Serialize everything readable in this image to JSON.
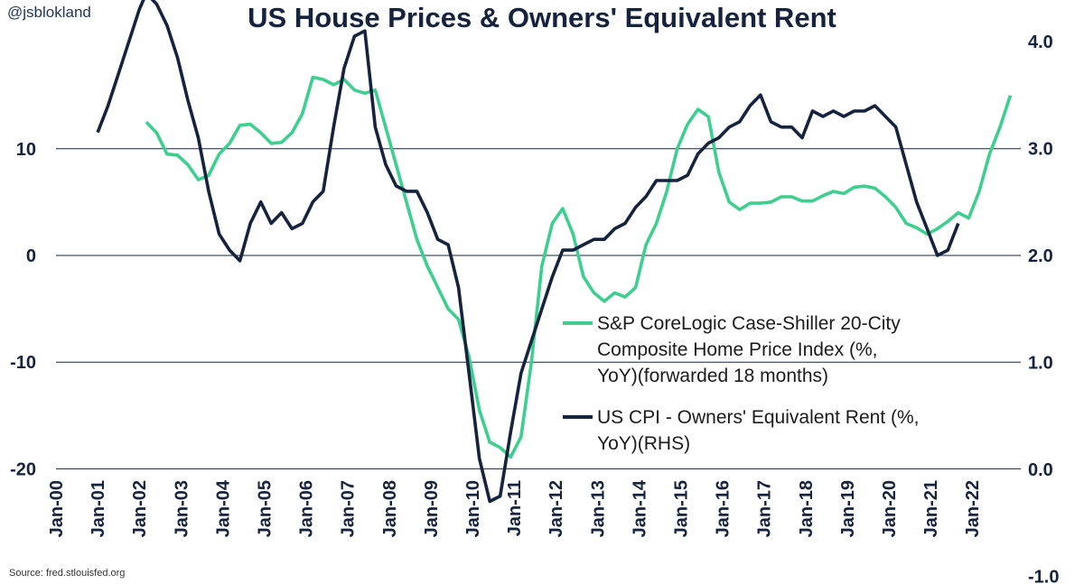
{
  "handle": "@jsblokland",
  "title": "US House Prices & Owners' Equivalent Rent",
  "source": "Source: fred.stlouisfed.org",
  "colors": {
    "green": "#3ccf8e",
    "navy": "#15233f",
    "grid": "#15233f"
  },
  "chart_data": {
    "type": "line",
    "title": "US House Prices & Owners' Equivalent Rent",
    "x_ticks": [
      "Jan-00",
      "Jan-01",
      "Jan-02",
      "Jan-03",
      "Jan-04",
      "Jan-05",
      "Jan-06",
      "Jan-07",
      "Jan-08",
      "Jan-09",
      "Jan-10",
      "Jan-11",
      "Jan-12",
      "Jan-13",
      "Jan-14",
      "Jan-15",
      "Jan-16",
      "Jan-17",
      "Jan-18",
      "Jan-19",
      "Jan-20",
      "Jan-21",
      "Jan-22"
    ],
    "left_axis": {
      "ticks": [
        10,
        0,
        -10,
        -20
      ],
      "tick_labels": [
        "10",
        "0",
        "-10",
        "-20"
      ],
      "range": [
        -20,
        17
      ]
    },
    "right_axis": {
      "ticks": [
        4.0,
        3.0,
        2.0,
        1.0,
        0.0,
        -1.0
      ],
      "tick_labels": [
        "4.0",
        "3.0",
        "2.0",
        "1.0",
        "0.0",
        "-1.0"
      ],
      "range": [
        -1.0,
        4.5
      ]
    },
    "gridlines": [
      10,
      0,
      -10,
      -20
    ],
    "legend_position": "center-right",
    "series": [
      {
        "name": "S&P CoreLogic Case-Shiller 20-City Composite Home Price Index (%, YoY)(forwarded 18 months)",
        "legend_lines": [
          "S&P CoreLogic Case-Shiller 20-City",
          "Composite Home Price Index (%,",
          "YoY)(forwarded 18 months)"
        ],
        "axis": "left",
        "color": "#3ccf8e",
        "points": [
          [
            "2002-03",
            12.5
          ],
          [
            "2002-06",
            11.5
          ],
          [
            "2002-09",
            9.5
          ],
          [
            "2002-12",
            9.4
          ],
          [
            "2003-03",
            8.5
          ],
          [
            "2003-06",
            7.1
          ],
          [
            "2003-09",
            7.5
          ],
          [
            "2003-12",
            9.5
          ],
          [
            "2004-03",
            10.5
          ],
          [
            "2004-06",
            12.2
          ],
          [
            "2004-09",
            12.3
          ],
          [
            "2004-12",
            11.5
          ],
          [
            "2005-03",
            10.5
          ],
          [
            "2005-06",
            10.6
          ],
          [
            "2005-09",
            11.5
          ],
          [
            "2005-12",
            13.3
          ],
          [
            "2006-03",
            16.7
          ],
          [
            "2006-06",
            16.5
          ],
          [
            "2006-09",
            16.0
          ],
          [
            "2006-12",
            16.5
          ],
          [
            "2007-03",
            15.5
          ],
          [
            "2007-06",
            15.2
          ],
          [
            "2007-09",
            15.5
          ],
          [
            "2007-12",
            12.0
          ],
          [
            "2008-03",
            8.5
          ],
          [
            "2008-06",
            5.0
          ],
          [
            "2008-09",
            1.5
          ],
          [
            "2008-12",
            -1.0
          ],
          [
            "2009-03",
            -3.0
          ],
          [
            "2009-06",
            -5.0
          ],
          [
            "2009-09",
            -6.0
          ],
          [
            "2009-12",
            -9.5
          ],
          [
            "2010-03",
            -14.5
          ],
          [
            "2010-06",
            -17.5
          ],
          [
            "2010-09",
            -18.0
          ],
          [
            "2010-12",
            -18.9
          ],
          [
            "2011-03",
            -17.0
          ],
          [
            "2011-06",
            -10.0
          ],
          [
            "2011-09",
            -1.0
          ],
          [
            "2011-12",
            3.0
          ],
          [
            "2012-03",
            4.4
          ],
          [
            "2012-06",
            2.0
          ],
          [
            "2012-09",
            -2.0
          ],
          [
            "2012-12",
            -3.5
          ],
          [
            "2013-03",
            -4.3
          ],
          [
            "2013-06",
            -3.5
          ],
          [
            "2013-09",
            -3.9
          ],
          [
            "2013-12",
            -3.0
          ],
          [
            "2014-03",
            1.0
          ],
          [
            "2014-06",
            3.0
          ],
          [
            "2014-09",
            6.0
          ],
          [
            "2014-12",
            10.0
          ],
          [
            "2015-03",
            12.3
          ],
          [
            "2015-06",
            13.7
          ],
          [
            "2015-09",
            13.0
          ],
          [
            "2015-12",
            7.8
          ],
          [
            "2016-03",
            5.0
          ],
          [
            "2016-06",
            4.3
          ],
          [
            "2016-09",
            4.9
          ],
          [
            "2016-12",
            4.9
          ],
          [
            "2017-03",
            5.0
          ],
          [
            "2017-06",
            5.5
          ],
          [
            "2017-09",
            5.5
          ],
          [
            "2017-12",
            5.1
          ],
          [
            "2018-03",
            5.1
          ],
          [
            "2018-06",
            5.6
          ],
          [
            "2018-09",
            6.0
          ],
          [
            "2018-12",
            5.8
          ],
          [
            "2019-03",
            6.4
          ],
          [
            "2019-06",
            6.5
          ],
          [
            "2019-09",
            6.3
          ],
          [
            "2019-12",
            5.5
          ],
          [
            "2020-03",
            4.5
          ],
          [
            "2020-06",
            3.0
          ],
          [
            "2020-09",
            2.6
          ],
          [
            "2020-12",
            2.0
          ],
          [
            "2021-03",
            2.5
          ],
          [
            "2021-06",
            3.2
          ],
          [
            "2021-09",
            4.0
          ],
          [
            "2021-12",
            3.5
          ],
          [
            "2022-03",
            6.0
          ],
          [
            "2022-06",
            9.5
          ],
          [
            "2022-09",
            12.0
          ],
          [
            "2022-12",
            15.0
          ]
        ]
      },
      {
        "name": "US CPI - Owners' Equivalent Rent (%, YoY)(RHS)",
        "legend_lines": [
          "US CPI - Owners' Equivalent Rent (%,",
          "YoY)(RHS)"
        ],
        "axis": "right",
        "color": "#15233f",
        "points": [
          [
            "2001-01",
            3.15
          ],
          [
            "2001-04",
            3.4
          ],
          [
            "2001-07",
            3.7
          ],
          [
            "2001-10",
            4.0
          ],
          [
            "2002-01",
            4.3
          ],
          [
            "2002-03",
            4.45
          ],
          [
            "2002-06",
            4.35
          ],
          [
            "2002-09",
            4.15
          ],
          [
            "2002-12",
            3.85
          ],
          [
            "2003-03",
            3.45
          ],
          [
            "2003-06",
            3.1
          ],
          [
            "2003-09",
            2.6
          ],
          [
            "2003-12",
            2.2
          ],
          [
            "2004-03",
            2.05
          ],
          [
            "2004-06",
            1.95
          ],
          [
            "2004-09",
            2.3
          ],
          [
            "2004-12",
            2.5
          ],
          [
            "2005-03",
            2.3
          ],
          [
            "2005-06",
            2.4
          ],
          [
            "2005-09",
            2.25
          ],
          [
            "2005-12",
            2.3
          ],
          [
            "2006-03",
            2.5
          ],
          [
            "2006-06",
            2.6
          ],
          [
            "2006-09",
            3.2
          ],
          [
            "2006-12",
            3.75
          ],
          [
            "2007-03",
            4.05
          ],
          [
            "2007-06",
            4.1
          ],
          [
            "2007-09",
            3.2
          ],
          [
            "2007-12",
            2.85
          ],
          [
            "2008-03",
            2.65
          ],
          [
            "2008-06",
            2.6
          ],
          [
            "2008-09",
            2.6
          ],
          [
            "2008-12",
            2.4
          ],
          [
            "2009-03",
            2.15
          ],
          [
            "2009-06",
            2.1
          ],
          [
            "2009-09",
            1.7
          ],
          [
            "2009-12",
            0.9
          ],
          [
            "2010-03",
            0.1
          ],
          [
            "2010-06",
            -0.3
          ],
          [
            "2010-09",
            -0.25
          ],
          [
            "2010-12",
            0.35
          ],
          [
            "2011-03",
            0.9
          ],
          [
            "2011-06",
            1.2
          ],
          [
            "2011-09",
            1.5
          ],
          [
            "2011-12",
            1.8
          ],
          [
            "2012-03",
            2.05
          ],
          [
            "2012-06",
            2.05
          ],
          [
            "2012-09",
            2.1
          ],
          [
            "2012-12",
            2.15
          ],
          [
            "2013-03",
            2.15
          ],
          [
            "2013-06",
            2.25
          ],
          [
            "2013-09",
            2.3
          ],
          [
            "2013-12",
            2.45
          ],
          [
            "2014-03",
            2.55
          ],
          [
            "2014-06",
            2.7
          ],
          [
            "2014-09",
            2.7
          ],
          [
            "2014-12",
            2.7
          ],
          [
            "2015-03",
            2.75
          ],
          [
            "2015-06",
            2.95
          ],
          [
            "2015-09",
            3.05
          ],
          [
            "2015-12",
            3.1
          ],
          [
            "2016-03",
            3.2
          ],
          [
            "2016-06",
            3.25
          ],
          [
            "2016-09",
            3.4
          ],
          [
            "2016-12",
            3.5
          ],
          [
            "2017-03",
            3.25
          ],
          [
            "2017-06",
            3.2
          ],
          [
            "2017-09",
            3.2
          ],
          [
            "2017-12",
            3.1
          ],
          [
            "2018-03",
            3.35
          ],
          [
            "2018-06",
            3.3
          ],
          [
            "2018-09",
            3.35
          ],
          [
            "2018-12",
            3.3
          ],
          [
            "2019-03",
            3.35
          ],
          [
            "2019-06",
            3.35
          ],
          [
            "2019-09",
            3.4
          ],
          [
            "2019-12",
            3.3
          ],
          [
            "2020-03",
            3.2
          ],
          [
            "2020-06",
            2.85
          ],
          [
            "2020-09",
            2.5
          ],
          [
            "2020-12",
            2.25
          ],
          [
            "2021-03",
            2.0
          ],
          [
            "2021-06",
            2.05
          ],
          [
            "2021-09",
            2.3
          ]
        ]
      }
    ]
  }
}
